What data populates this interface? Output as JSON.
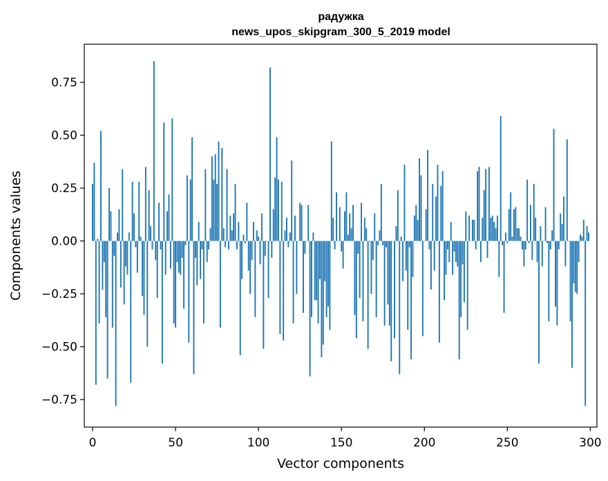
{
  "chart_data": {
    "type": "bar",
    "title": "радужка",
    "subtitle": "news_upos_skipgram_300_5_2019 model",
    "xlabel": "Vector components",
    "ylabel": "Components values",
    "xlim": [
      -5,
      304
    ],
    "ylim": [
      -0.88,
      0.93
    ],
    "xticks": [
      0,
      50,
      100,
      150,
      200,
      250,
      300
    ],
    "yticks": [
      -0.75,
      -0.5,
      -0.25,
      0.0,
      0.25,
      0.5,
      0.75
    ],
    "xtick_labels": [
      "0",
      "50",
      "100",
      "150",
      "200",
      "250",
      "300"
    ],
    "ytick_labels": [
      "−0.75",
      "−0.50",
      "−0.25",
      "0.00",
      "0.25",
      "0.50",
      "0.75"
    ],
    "bar_color": "#1f77b4",
    "grid": false,
    "values": [
      0.27,
      0.37,
      -0.68,
      0.01,
      -0.39,
      0.52,
      -0.23,
      -0.1,
      -0.36,
      -0.65,
      0.25,
      0.14,
      -0.41,
      -0.07,
      -0.78,
      0.04,
      0.15,
      -0.22,
      0.34,
      -0.3,
      -0.12,
      -0.16,
      0.04,
      -0.67,
      0.28,
      0.13,
      -0.03,
      -0.15,
      0.28,
      0.02,
      -0.26,
      -0.35,
      0.35,
      -0.5,
      0.24,
      0.07,
      -0.04,
      0.85,
      -0.09,
      -0.27,
      0.18,
      -0.04,
      -0.58,
      0.56,
      -0.16,
      0.14,
      0.22,
      -0.13,
      0.58,
      -0.39,
      -0.41,
      -0.1,
      -0.15,
      -0.16,
      -0.08,
      -0.32,
      -0.02,
      0.31,
      -0.48,
      0.29,
      0.49,
      -0.63,
      -0.08,
      -0.21,
      0.09,
      -0.18,
      -0.04,
      -0.39,
      0.34,
      -0.1,
      -0.04,
      0.06,
      0.4,
      0.29,
      0.41,
      0.27,
      0.47,
      -0.41,
      0.44,
      0.06,
      -0.03,
      0.34,
      -0.04,
      0.12,
      0.05,
      0.13,
      0.27,
      -0.04,
      0.09,
      -0.54,
      -0.18,
      0.03,
      -0.01,
      0.18,
      -0.14,
      -0.25,
      -0.09,
      0.09,
      -0.36,
      0.05,
      0.02,
      -0.11,
      0.13,
      -0.51,
      -0.07,
      0.0,
      -0.27,
      0.82,
      -0.08,
      0.15,
      0.3,
      0.49,
      0.29,
      -0.44,
      0.28,
      -0.47,
      0.05,
      0.11,
      -0.03,
      0.04,
      0.38,
      -0.39,
      0.12,
      -0.25,
      0.0,
      0.18,
      0.17,
      -0.34,
      -0.06,
      0.0,
      0.17,
      -0.64,
      -0.36,
      0.04,
      -0.28,
      -0.28,
      -0.39,
      -0.18,
      -0.55,
      -0.49,
      -0.19,
      -0.36,
      -0.31,
      -0.42,
      0.47,
      0.11,
      -0.04,
      0.23,
      0.0,
      0.16,
      -0.05,
      -0.13,
      0.14,
      0.23,
      0.03,
      0.13,
      0.06,
      0.17,
      -0.35,
      -0.46,
      -0.06,
      -0.27,
      0.18,
      -0.38,
      0.11,
      0.06,
      -0.51,
      0.0,
      -0.25,
      -0.09,
      0.13,
      -0.36,
      -0.02,
      0.05,
      0.27,
      -0.02,
      -0.4,
      -0.03,
      -0.3,
      -0.4,
      -0.57,
      0.0,
      -0.46,
      0.07,
      0.24,
      -0.63,
      0.02,
      -0.19,
      0.36,
      -0.14,
      -0.42,
      -0.03,
      -0.56,
      -0.17,
      0.12,
      0.17,
      0.1,
      0.39,
      0.31,
      -0.45,
      0.0,
      0.15,
      0.43,
      -0.04,
      -0.23,
      0.27,
      -0.14,
      0.21,
      0.36,
      -0.48,
      0.26,
      0.33,
      -0.28,
      -0.16,
      -0.04,
      -0.1,
      0.09,
      -0.16,
      -0.05,
      -0.1,
      -0.12,
      -0.56,
      -0.36,
      -0.11,
      -0.29,
      0.14,
      -0.42,
      0.12,
      0.0,
      0.1,
      0.1,
      -0.04,
      0.33,
      0.35,
      -0.1,
      0.11,
      0.24,
      0.34,
      -0.08,
      0.35,
      0.11,
      0.12,
      0.09,
      0.06,
      0.12,
      -0.17,
      0.59,
      -0.02,
      -0.34,
      0.04,
      -0.01,
      0.15,
      0.23,
      0.02,
      0.15,
      0.16,
      0.06,
      0.06,
      0.02,
      -0.04,
      -0.12,
      -0.04,
      0.29,
      -0.01,
      0.17,
      -0.09,
      0.27,
      0.11,
      -0.1,
      -0.58,
      0.07,
      -0.12,
      0.0,
      0.16,
      -0.01,
      -0.38,
      -0.04,
      0.05,
      0.53,
      -0.31,
      -0.4,
      -0.04,
      0.13,
      0.08,
      0.21,
      -0.12,
      0.48,
      0.0,
      -0.38,
      -0.6,
      -0.2,
      -0.24,
      -0.25,
      -0.1,
      0.03,
      0.02,
      0.1,
      -0.78,
      0.07,
      0.04
    ]
  }
}
